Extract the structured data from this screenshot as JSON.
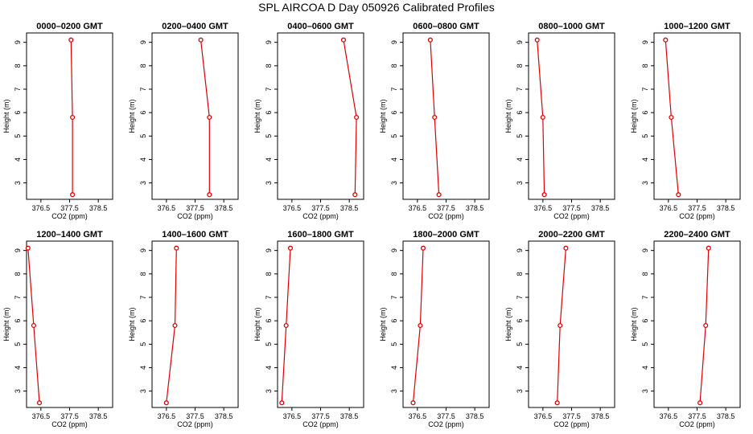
{
  "figure": {
    "title": "SPL AIRCOA D  Day 050926  Calibrated Profiles",
    "series_color": "#dd0000"
  },
  "chart_data": [
    {
      "type": "line",
      "title": "0000–0200 GMT",
      "xlabel": "CO2 (ppm)",
      "ylabel": "Height (m)",
      "xlim": [
        376.0,
        379.0
      ],
      "ylim": [
        2.3,
        9.4
      ],
      "xticks": [
        "376.5",
        "377.5",
        "378.5"
      ],
      "yticks": [
        "3",
        "4",
        "5",
        "6",
        "7",
        "8",
        "9"
      ],
      "x": [
        377.55,
        377.6,
        377.6
      ],
      "y": [
        9.1,
        5.8,
        2.5
      ]
    },
    {
      "type": "line",
      "title": "0200–0400 GMT",
      "xlabel": "CO2 (ppm)",
      "ylabel": "Height (m)",
      "xlim": [
        376.0,
        379.0
      ],
      "ylim": [
        2.3,
        9.4
      ],
      "xticks": [
        "376.5",
        "377.5",
        "378.5"
      ],
      "yticks": [
        "3",
        "4",
        "5",
        "6",
        "7",
        "8",
        "9"
      ],
      "x": [
        377.7,
        378.0,
        378.0
      ],
      "y": [
        9.1,
        5.8,
        2.5
      ]
    },
    {
      "type": "line",
      "title": "0400–0600 GMT",
      "xlabel": "CO2 (ppm)",
      "ylabel": "Height (m)",
      "xlim": [
        376.0,
        379.0
      ],
      "ylim": [
        2.3,
        9.4
      ],
      "xticks": [
        "376.5",
        "377.5",
        "378.5"
      ],
      "yticks": [
        "3",
        "4",
        "5",
        "6",
        "7",
        "8",
        "9"
      ],
      "x": [
        378.3,
        378.75,
        378.7
      ],
      "y": [
        9.1,
        5.8,
        2.5
      ]
    },
    {
      "type": "line",
      "title": "0600–0800 GMT",
      "xlabel": "CO2 (ppm)",
      "ylabel": "Height (m)",
      "xlim": [
        376.0,
        379.0
      ],
      "ylim": [
        2.3,
        9.4
      ],
      "xticks": [
        "376.5",
        "377.5",
        "378.5"
      ],
      "yticks": [
        "3",
        "4",
        "5",
        "6",
        "7",
        "8",
        "9"
      ],
      "x": [
        376.95,
        377.1,
        377.25
      ],
      "y": [
        9.1,
        5.8,
        2.5
      ]
    },
    {
      "type": "line",
      "title": "0800–1000 GMT",
      "xlabel": "CO2 (ppm)",
      "ylabel": "Height (m)",
      "xlim": [
        376.0,
        379.0
      ],
      "ylim": [
        2.3,
        9.4
      ],
      "xticks": [
        "376.5",
        "377.5",
        "378.5"
      ],
      "yticks": [
        "3",
        "4",
        "5",
        "6",
        "7",
        "8",
        "9"
      ],
      "x": [
        376.3,
        376.5,
        376.55
      ],
      "y": [
        9.1,
        5.8,
        2.5
      ]
    },
    {
      "type": "line",
      "title": "1000–1200 GMT",
      "xlabel": "CO2 (ppm)",
      "ylabel": "Height (m)",
      "xlim": [
        376.0,
        379.0
      ],
      "ylim": [
        2.3,
        9.4
      ],
      "xticks": [
        "376.5",
        "377.5",
        "378.5"
      ],
      "yticks": [
        "3",
        "4",
        "5",
        "6",
        "7",
        "8",
        "9"
      ],
      "x": [
        376.4,
        376.6,
        376.85
      ],
      "y": [
        9.1,
        5.8,
        2.5
      ]
    },
    {
      "type": "line",
      "title": "1200–1400 GMT",
      "xlabel": "CO2 (ppm)",
      "ylabel": "Height (m)",
      "xlim": [
        376.0,
        379.0
      ],
      "ylim": [
        2.3,
        9.4
      ],
      "xticks": [
        "376.5",
        "377.5",
        "378.5"
      ],
      "yticks": [
        "3",
        "4",
        "5",
        "6",
        "7",
        "8",
        "9"
      ],
      "x": [
        376.05,
        376.25,
        376.45
      ],
      "y": [
        9.1,
        5.8,
        2.5
      ]
    },
    {
      "type": "line",
      "title": "1400–1600 GMT",
      "xlabel": "CO2 (ppm)",
      "ylabel": "Height (m)",
      "xlim": [
        376.0,
        379.0
      ],
      "ylim": [
        2.3,
        9.4
      ],
      "xticks": [
        "376.5",
        "377.5",
        "378.5"
      ],
      "yticks": [
        "3",
        "4",
        "5",
        "6",
        "7",
        "8",
        "9"
      ],
      "x": [
        376.85,
        376.8,
        376.5
      ],
      "y": [
        9.1,
        5.8,
        2.5
      ]
    },
    {
      "type": "line",
      "title": "1600–1800 GMT",
      "xlabel": "CO2 (ppm)",
      "ylabel": "Height (m)",
      "xlim": [
        376.0,
        379.0
      ],
      "ylim": [
        2.3,
        9.4
      ],
      "xticks": [
        "376.5",
        "377.5",
        "378.5"
      ],
      "yticks": [
        "3",
        "4",
        "5",
        "6",
        "7",
        "8",
        "9"
      ],
      "x": [
        376.45,
        376.3,
        376.15
      ],
      "y": [
        9.1,
        5.8,
        2.5
      ]
    },
    {
      "type": "line",
      "title": "1800–2000 GMT",
      "xlabel": "CO2 (ppm)",
      "ylabel": "Height (m)",
      "xlim": [
        376.0,
        379.0
      ],
      "ylim": [
        2.3,
        9.4
      ],
      "xticks": [
        "376.5",
        "377.5",
        "378.5"
      ],
      "yticks": [
        "3",
        "4",
        "5",
        "6",
        "7",
        "8",
        "9"
      ],
      "x": [
        376.7,
        376.6,
        376.35
      ],
      "y": [
        9.1,
        5.8,
        2.5
      ]
    },
    {
      "type": "line",
      "title": "2000–2200 GMT",
      "xlabel": "CO2 (ppm)",
      "ylabel": "Height (m)",
      "xlim": [
        376.0,
        379.0
      ],
      "ylim": [
        2.3,
        9.4
      ],
      "xticks": [
        "376.5",
        "377.5",
        "378.5"
      ],
      "yticks": [
        "3",
        "4",
        "5",
        "6",
        "7",
        "8",
        "9"
      ],
      "x": [
        377.3,
        377.1,
        377.0
      ],
      "y": [
        9.1,
        5.8,
        2.5
      ]
    },
    {
      "type": "line",
      "title": "2200–2400 GMT",
      "xlabel": "CO2 (ppm)",
      "ylabel": "Height (m)",
      "xlim": [
        376.0,
        379.0
      ],
      "ylim": [
        2.3,
        9.4
      ],
      "xticks": [
        "376.5",
        "377.5",
        "378.5"
      ],
      "yticks": [
        "3",
        "4",
        "5",
        "6",
        "7",
        "8",
        "9"
      ],
      "x": [
        377.9,
        377.8,
        377.6
      ],
      "y": [
        9.1,
        5.8,
        2.5
      ]
    }
  ]
}
